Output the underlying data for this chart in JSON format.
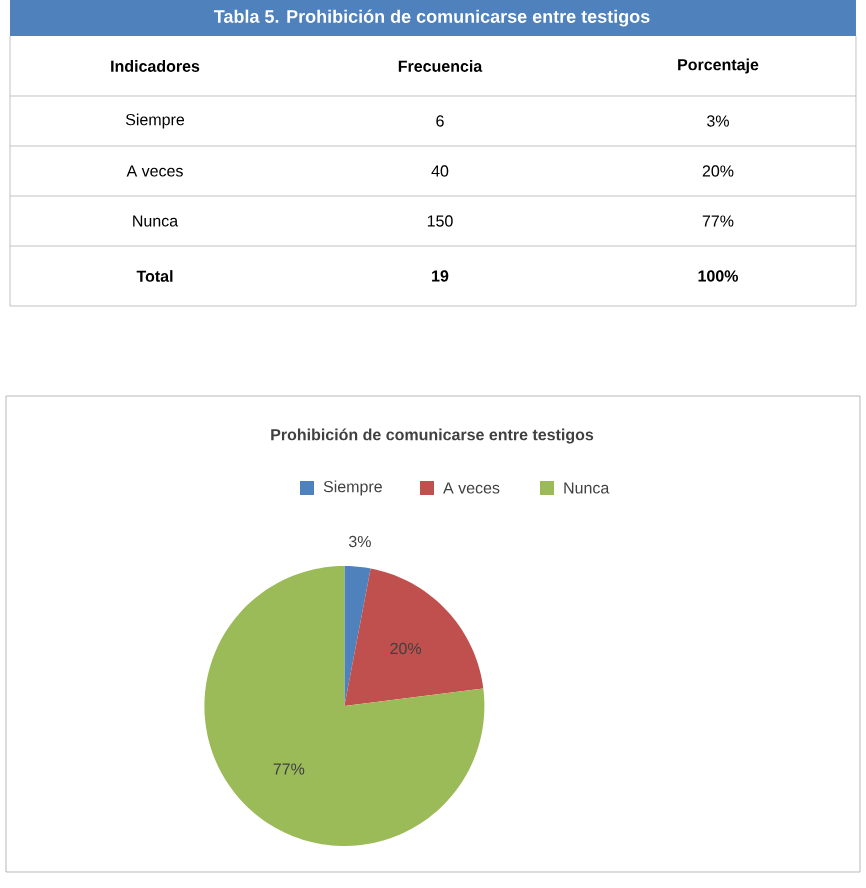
{
  "chart_data": [
    {
      "type": "other",
      "title": "Tabla 5. Prohibición de comunicarse entre testigos",
      "annotations": [
        "Indicadores",
        "Frecuencia",
        "Porcentaje",
        "Siempre",
        "6",
        "3%",
        "A veces",
        "40",
        "20%",
        "Nunca",
        "150",
        "77%",
        "Total",
        "19",
        "100%"
      ]
    },
    {
      "type": "pie",
      "title": "Prohibición de comunicarse entre testigos",
      "categories": [
        "Siempre",
        "A veces",
        "Nunca"
      ],
      "values": [
        3,
        20,
        77
      ],
      "colors": [
        "#4f81bd",
        "#c0504d",
        "#9bbb59"
      ],
      "value_labels": [
        "3%",
        "20%",
        "77%"
      ],
      "legend": "top"
    }
  ]
}
